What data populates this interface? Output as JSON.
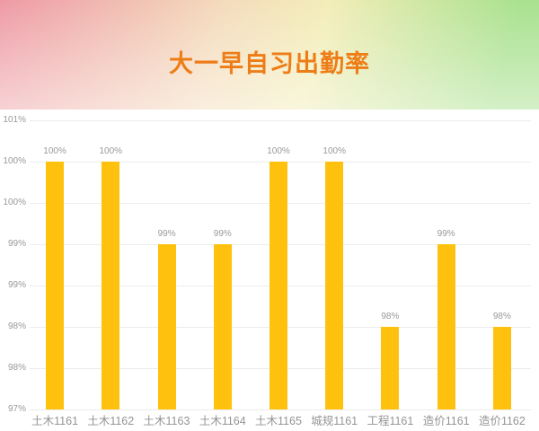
{
  "header": {
    "title": "大一早自习出勤率",
    "title_color": "#ee7d18",
    "gradient_left": "#ee9aa6",
    "gradient_mid_pink_cream": "#f4dcbc",
    "gradient_mid_yellow": "#f3edb8",
    "gradient_right": "#a8e18e"
  },
  "chart_data": {
    "type": "bar",
    "title": "大一早自习出勤率",
    "xlabel": "",
    "ylabel": "",
    "categories": [
      "土木1161",
      "土木1162",
      "土木1163",
      "土木1164",
      "土木1165",
      "城规1161",
      "工程1161",
      "造价1161",
      "造价1162"
    ],
    "values": [
      100,
      100,
      99,
      99,
      100,
      100,
      98,
      99,
      98
    ],
    "bar_labels": [
      "100%",
      "100%",
      "99%",
      "99%",
      "100%",
      "100%",
      "98%",
      "99%",
      "98%"
    ],
    "unit": "%",
    "ylim": [
      97,
      100.5
    ],
    "ytick_step": 0.5,
    "yticks": [
      {
        "value": 100.5,
        "label": "101%"
      },
      {
        "value": 100.0,
        "label": "100%"
      },
      {
        "value": 99.5,
        "label": "100%"
      },
      {
        "value": 99.0,
        "label": "99%"
      },
      {
        "value": 98.5,
        "label": "99%"
      },
      {
        "value": 98.0,
        "label": "98%"
      },
      {
        "value": 97.5,
        "label": "98%"
      },
      {
        "value": 97.0,
        "label": "97%"
      }
    ],
    "grid": true,
    "legend": false,
    "colors": {
      "bar": "#fec20e",
      "grid_line": "#ececec",
      "tick_label": "#999999",
      "category_label": "#949494",
      "bar_value_label": "#999999"
    }
  }
}
